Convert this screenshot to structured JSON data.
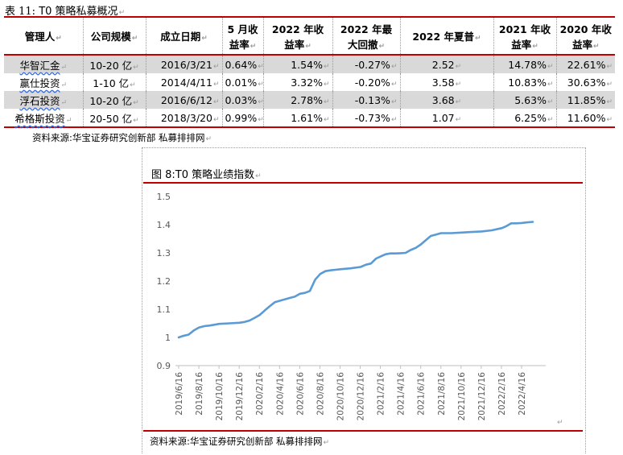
{
  "table": {
    "caption_label": "表 11:",
    "caption_text": "T0 策略私募概况",
    "headers": [
      {
        "line1": "管理人",
        "line2": ""
      },
      {
        "line1": "公司规模",
        "line2": ""
      },
      {
        "line1": "成立日期",
        "line2": ""
      },
      {
        "line1": "5 月收",
        "line2": "益率"
      },
      {
        "line1": "2022 年收",
        "line2": "益率"
      },
      {
        "line1": "2022 年最",
        "line2": "大回撤"
      },
      {
        "line1": "2022 年夏普",
        "line2": ""
      },
      {
        "line1": "2021 年收",
        "line2": "益率"
      },
      {
        "line1": "2020 年收",
        "line2": "益率"
      }
    ],
    "rows": [
      {
        "manager": "华智汇金",
        "scale": "10-20 亿",
        "founded": "2016/3/21",
        "may": "0.64%",
        "ret2022": "1.54%",
        "mdd2022": "-0.27%",
        "sharpe2022": "2.52",
        "ret2021": "14.78%",
        "ret2020": "22.61%"
      },
      {
        "manager": "赢仕投资",
        "scale": "1-10 亿",
        "founded": "2014/4/11",
        "may": "0.01%",
        "ret2022": "3.32%",
        "mdd2022": "-0.20%",
        "sharpe2022": "3.58",
        "ret2021": "10.83%",
        "ret2020": "30.63%"
      },
      {
        "manager": "浮石投资",
        "scale": "10-20 亿",
        "founded": "2016/6/12",
        "may": "0.03%",
        "ret2022": "2.78%",
        "mdd2022": "-0.13%",
        "sharpe2022": "3.68",
        "ret2021": "5.63%",
        "ret2020": "11.85%"
      },
      {
        "manager": "希格斯投资",
        "scale": "20-50 亿",
        "founded": "2018/3/20",
        "may": "0.99%",
        "ret2022": "1.61%",
        "mdd2022": "-0.73%",
        "sharpe2022": "1.07",
        "ret2021": "6.25%",
        "ret2020": "11.60%"
      }
    ],
    "source": "资料来源:华宝证券研究创新部 私募排排网"
  },
  "figure": {
    "caption": "图 8:T0 策略业绩指数",
    "source": "资料来源:华宝证券研究创新部 私募排排网"
  },
  "chart_data": {
    "type": "line",
    "title": "",
    "xlabel": "",
    "ylabel": "",
    "ylim": [
      0.9,
      1.5
    ],
    "yticks": [
      "0.9",
      "1",
      "1.1",
      "1.2",
      "1.3",
      "1.4",
      "1.5"
    ],
    "grid": false,
    "legend": "none",
    "line_color": "#5b9bd5",
    "x_tick_labels": [
      "2019/6/16",
      "2019/8/16",
      "2019/10/16",
      "2019/12/16",
      "2020/2/16",
      "2020/4/16",
      "2020/6/16",
      "2020/8/16",
      "2020/10/16",
      "2020/12/16",
      "2021/2/16",
      "2021/4/16",
      "2021/6/16",
      "2021/8/16",
      "2021/10/16",
      "2021/12/16",
      "2022/2/16",
      "2022/4/16"
    ],
    "series": [
      {
        "x": [
          "2019/6/16",
          "2019/6/28",
          "2019/7/16",
          "2019/8/1",
          "2019/8/16",
          "2019/9/1",
          "2019/9/16",
          "2019/10/1",
          "2019/10/16",
          "2019/11/16",
          "2019/12/16",
          "2020/1/1",
          "2020/1/16",
          "2020/2/1",
          "2020/2/16",
          "2020/3/1",
          "2020/3/16",
          "2020/4/1",
          "2020/4/16",
          "2020/5/1",
          "2020/5/16",
          "2020/6/1",
          "2020/6/16",
          "2020/7/1",
          "2020/7/16",
          "2020/8/1",
          "2020/8/16",
          "2020/9/1",
          "2020/9/16",
          "2020/10/1",
          "2020/10/16",
          "2020/11/16",
          "2020/12/16",
          "2021/1/1",
          "2021/1/16",
          "2021/2/1",
          "2021/2/16",
          "2021/3/1",
          "2021/3/16",
          "2021/4/1",
          "2021/4/16",
          "2021/5/1",
          "2021/5/16",
          "2021/6/1",
          "2021/6/16",
          "2021/7/1",
          "2021/7/16",
          "2021/8/1",
          "2021/8/16",
          "2021/9/16",
          "2021/10/16",
          "2021/11/16",
          "2021/12/16",
          "2022/1/16",
          "2022/2/16",
          "2022/3/1",
          "2022/3/16",
          "2022/4/1",
          "2022/4/16",
          "2022/5/1",
          "2022/5/20"
        ],
        "y": [
          1.0,
          1.005,
          1.01,
          1.025,
          1.035,
          1.04,
          1.042,
          1.045,
          1.048,
          1.05,
          1.052,
          1.055,
          1.06,
          1.07,
          1.08,
          1.095,
          1.11,
          1.125,
          1.13,
          1.135,
          1.14,
          1.145,
          1.155,
          1.158,
          1.165,
          1.205,
          1.225,
          1.235,
          1.238,
          1.24,
          1.242,
          1.245,
          1.25,
          1.258,
          1.262,
          1.28,
          1.288,
          1.295,
          1.298,
          1.298,
          1.299,
          1.3,
          1.31,
          1.318,
          1.33,
          1.345,
          1.36,
          1.365,
          1.37,
          1.37,
          1.372,
          1.374,
          1.376,
          1.38,
          1.388,
          1.395,
          1.405,
          1.405,
          1.406,
          1.408,
          1.41
        ]
      }
    ]
  }
}
